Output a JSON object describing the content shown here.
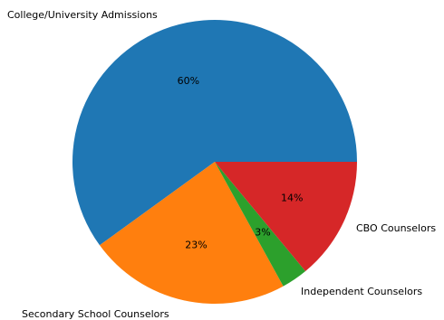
{
  "chart_data": {
    "type": "pie",
    "start_angle_deg": 0,
    "direction": "counterclockwise",
    "slices": [
      {
        "label": "College/University Admissions",
        "value": 60,
        "pct_label": "60%",
        "color": "#1f77b4"
      },
      {
        "label": "Secondary School Counselors",
        "value": 23,
        "pct_label": "23%",
        "color": "#ff7f0e"
      },
      {
        "label": "Independent Counselors",
        "value": 3,
        "pct_label": "3%",
        "color": "#2ca02c"
      },
      {
        "label": "CBO Counselors",
        "value": 14,
        "pct_label": "14%",
        "color": "#d62728"
      }
    ]
  }
}
